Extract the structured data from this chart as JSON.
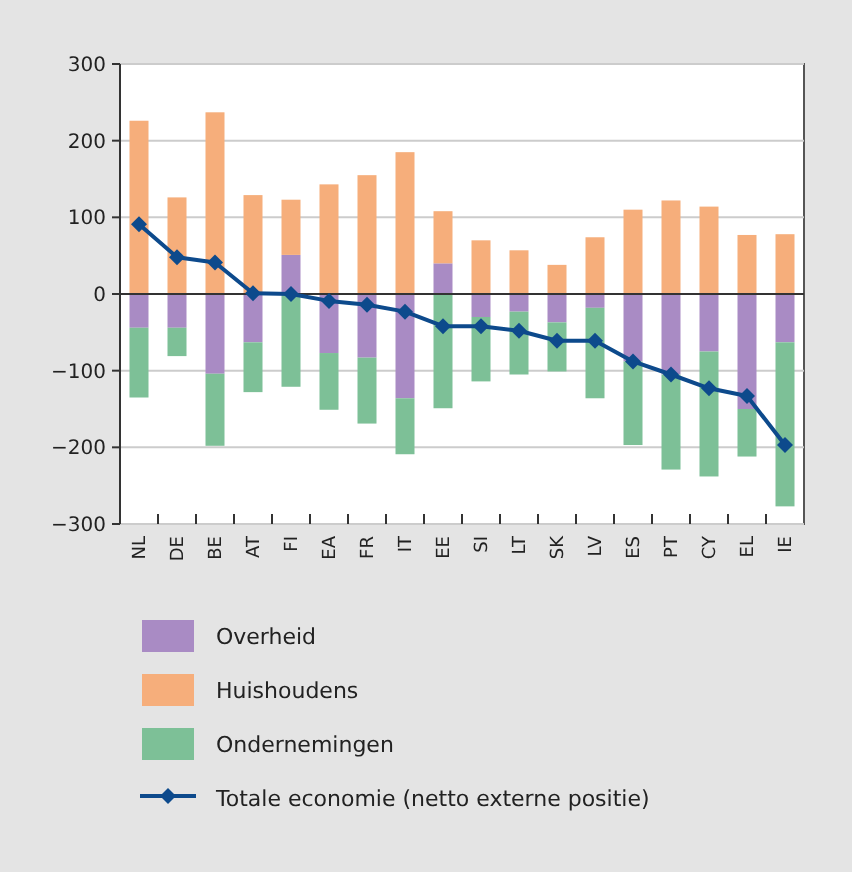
{
  "chart_data": {
    "type": "bar",
    "stacked": true,
    "categories": [
      "NL",
      "DE",
      "BE",
      "AT",
      "FI",
      "EA",
      "FR",
      "IT",
      "EE",
      "SI",
      "LT",
      "SK",
      "LV",
      "ES",
      "PT",
      "CY",
      "EL",
      "IE"
    ],
    "series": [
      {
        "name": "Overheid",
        "color": "#a98bc4",
        "values": [
          -44,
          -44,
          -104,
          -63,
          51,
          -77,
          -83,
          -136,
          40,
          -30,
          -23,
          -37,
          -18,
          -88,
          -105,
          -75,
          -150,
          -63
        ]
      },
      {
        "name": "Huishoudens",
        "color": "#f6ae7b",
        "values": [
          226,
          126,
          237,
          129,
          72,
          143,
          155,
          185,
          68,
          70,
          57,
          38,
          74,
          110,
          122,
          114,
          77,
          78
        ]
      },
      {
        "name": "Ondernemingen",
        "color": "#7dc097",
        "values": [
          -91,
          -37,
          -94,
          -65,
          -121,
          -74,
          -86,
          -73,
          -149,
          -84,
          -82,
          -64,
          -118,
          -109,
          -124,
          -163,
          -62,
          -214
        ]
      },
      {
        "name": "Totale economie (netto externe positie)",
        "type": "line",
        "color": "#0d4a8c",
        "marker": "diamond",
        "values": [
          91,
          48,
          41,
          1,
          0,
          -9,
          -14,
          -23,
          -42,
          -42,
          -48,
          -61,
          -61,
          -88,
          -105,
          -123,
          -133,
          -197
        ]
      }
    ],
    "ylim": [
      -300,
      300
    ],
    "yticks": [
      -300,
      -200,
      -100,
      0,
      100,
      200,
      300
    ],
    "grid": "y",
    "legend": "bottom"
  }
}
